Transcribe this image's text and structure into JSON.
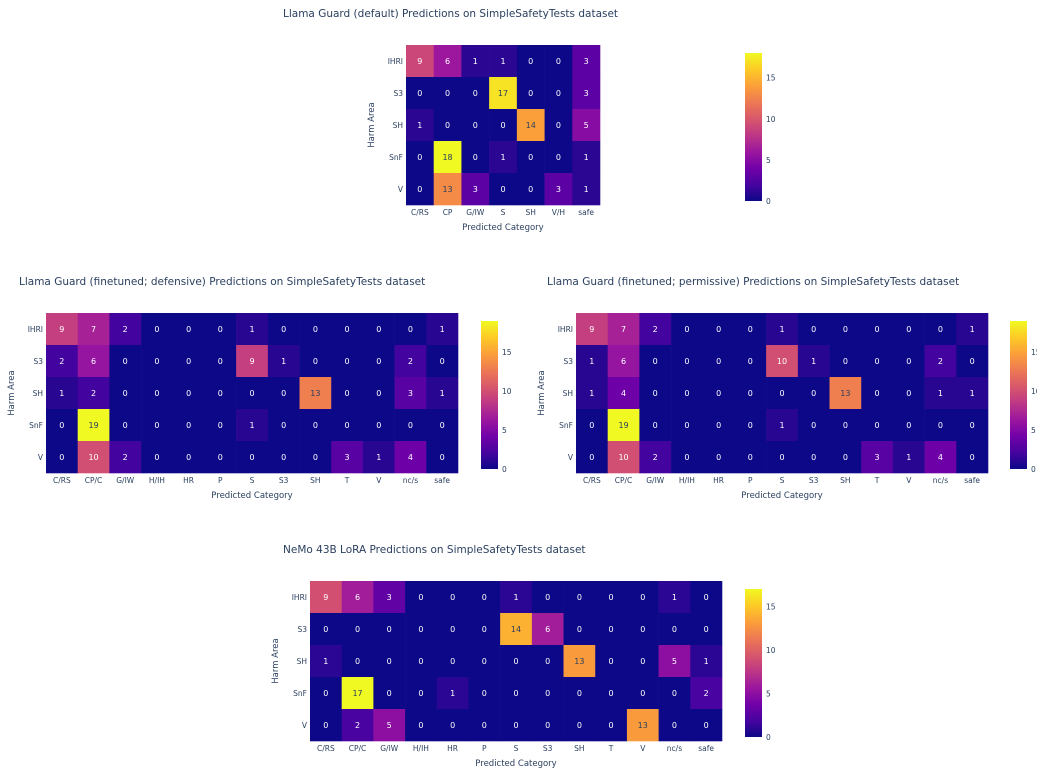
{
  "colorscale": [
    "#0d0887",
    "#46039f",
    "#7201a8",
    "#9c179e",
    "#bd3786",
    "#d8576b",
    "#ed7953",
    "#fb9f3a",
    "#fdca26",
    "#f0f921"
  ],
  "chart_data": [
    {
      "type": "heatmap",
      "title": "Llama Guard (default) Predictions on SimpleSafetyTests dataset",
      "xlabel": "Predicted Category",
      "ylabel": "Harm Area",
      "x": [
        "C/RS",
        "CP",
        "G/IW",
        "S",
        "SH",
        "V/H",
        "safe"
      ],
      "y": [
        "IHRI",
        "S3",
        "SH",
        "SnF",
        "V"
      ],
      "z": [
        [
          9,
          6,
          1,
          1,
          0,
          0,
          3
        ],
        [
          0,
          0,
          0,
          17,
          0,
          0,
          3
        ],
        [
          1,
          0,
          0,
          0,
          14,
          0,
          5
        ],
        [
          0,
          18,
          0,
          1,
          0,
          0,
          1
        ],
        [
          0,
          13,
          3,
          0,
          0,
          3,
          1
        ]
      ],
      "zmax": 18,
      "colorbar_ticks": [
        0,
        5,
        10,
        15
      ]
    },
    {
      "type": "heatmap",
      "title": "Llama Guard (finetuned; defensive) Predictions on SimpleSafetyTests dataset",
      "xlabel": "Predicted Category",
      "ylabel": "Harm Area",
      "x": [
        "C/RS",
        "CP/C",
        "G/IW",
        "H/IH",
        "HR",
        "P",
        "S",
        "S3",
        "SH",
        "T",
        "V",
        "nc/s",
        "safe"
      ],
      "y": [
        "IHRI",
        "S3",
        "SH",
        "SnF",
        "V"
      ],
      "z": [
        [
          9,
          7,
          2,
          0,
          0,
          0,
          1,
          0,
          0,
          0,
          0,
          0,
          1
        ],
        [
          2,
          6,
          0,
          0,
          0,
          0,
          9,
          1,
          0,
          0,
          0,
          2,
          0
        ],
        [
          1,
          2,
          0,
          0,
          0,
          0,
          0,
          0,
          13,
          0,
          0,
          3,
          1
        ],
        [
          0,
          19,
          0,
          0,
          0,
          0,
          1,
          0,
          0,
          0,
          0,
          0,
          0
        ],
        [
          0,
          10,
          2,
          0,
          0,
          0,
          0,
          0,
          0,
          3,
          1,
          4,
          0
        ]
      ],
      "zmax": 19,
      "colorbar_ticks": [
        0,
        5,
        10,
        15
      ]
    },
    {
      "type": "heatmap",
      "title": "Llama Guard (finetuned; permissive) Predictions on SimpleSafetyTests dataset",
      "xlabel": "Predicted Category",
      "ylabel": "Harm Area",
      "x": [
        "C/RS",
        "CP/C",
        "G/IW",
        "H/IH",
        "HR",
        "P",
        "S",
        "S3",
        "SH",
        "T",
        "V",
        "nc/s",
        "safe"
      ],
      "y": [
        "IHRI",
        "S3",
        "SH",
        "SnF",
        "V"
      ],
      "z": [
        [
          9,
          7,
          2,
          0,
          0,
          0,
          1,
          0,
          0,
          0,
          0,
          0,
          1
        ],
        [
          1,
          6,
          0,
          0,
          0,
          0,
          10,
          1,
          0,
          0,
          0,
          2,
          0
        ],
        [
          1,
          4,
          0,
          0,
          0,
          0,
          0,
          0,
          13,
          0,
          0,
          1,
          1
        ],
        [
          0,
          19,
          0,
          0,
          0,
          0,
          1,
          0,
          0,
          0,
          0,
          0,
          0
        ],
        [
          0,
          10,
          2,
          0,
          0,
          0,
          0,
          0,
          0,
          3,
          1,
          4,
          0
        ]
      ],
      "zmax": 19,
      "colorbar_ticks": [
        0,
        5,
        10,
        15
      ]
    },
    {
      "type": "heatmap",
      "title": "NeMo 43B LoRA Predictions on SimpleSafetyTests dataset",
      "xlabel": "Predicted Category",
      "ylabel": "Harm Area",
      "x": [
        "C/RS",
        "CP/C",
        "G/IW",
        "H/IH",
        "HR",
        "P",
        "S",
        "S3",
        "SH",
        "T",
        "V",
        "nc/s",
        "safe"
      ],
      "y": [
        "IHRI",
        "S3",
        "SH",
        "SnF",
        "V"
      ],
      "z": [
        [
          9,
          6,
          3,
          0,
          0,
          0,
          1,
          0,
          0,
          0,
          0,
          1,
          0
        ],
        [
          0,
          0,
          0,
          0,
          0,
          0,
          14,
          6,
          0,
          0,
          0,
          0,
          0
        ],
        [
          1,
          0,
          0,
          0,
          0,
          0,
          0,
          0,
          13,
          0,
          0,
          5,
          1
        ],
        [
          0,
          17,
          0,
          0,
          1,
          0,
          0,
          0,
          0,
          0,
          0,
          0,
          2
        ],
        [
          0,
          2,
          5,
          0,
          0,
          0,
          0,
          0,
          0,
          0,
          13,
          0,
          0
        ]
      ],
      "zmax": 17,
      "colorbar_ticks": [
        0,
        5,
        10,
        15
      ]
    }
  ]
}
